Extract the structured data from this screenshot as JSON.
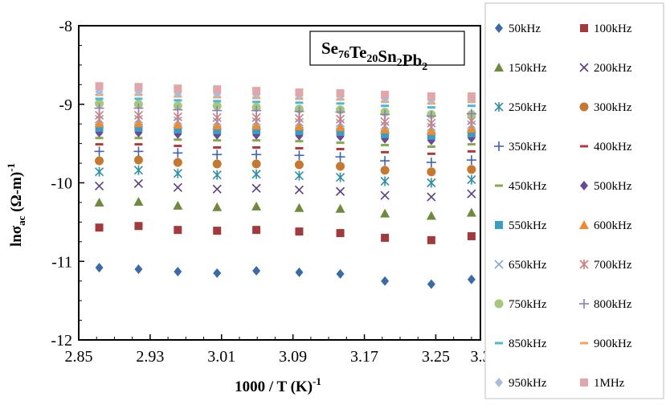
{
  "chart_data": {
    "type": "scatter",
    "title": "",
    "xlabel": "1000 / T (K)",
    "xlabel_sup": "-1",
    "ylabel_parts": [
      "lnσ",
      "ac",
      " (Ω-m)",
      "-1"
    ],
    "xlim": [
      2.85,
      3.3
    ],
    "ylim": [
      -12,
      -8
    ],
    "x_ticks": [
      2.85,
      2.93,
      3.01,
      3.09,
      3.17,
      3.25,
      3.3
    ],
    "x_tick_labels": [
      "2.85",
      "2.93",
      "3.01",
      "3.09",
      "3.17",
      "3.25",
      "3.3"
    ],
    "y_ticks": [
      -12,
      -11,
      -10,
      -9,
      -8
    ],
    "y_tick_labels": [
      "-12",
      "-11",
      "-10",
      "-9",
      "-8"
    ],
    "grid": false,
    "legend_position": "right",
    "composition_label": {
      "base": [
        "Se",
        "Te",
        "Sn",
        "Pb"
      ],
      "subs": [
        "76",
        "20",
        "2",
        "2"
      ]
    },
    "x": [
      2.873,
      2.917,
      2.961,
      3.005,
      3.049,
      3.097,
      3.143,
      3.193,
      3.245,
      3.29
    ],
    "series": [
      {
        "name": "50kHz",
        "marker": "diamond",
        "color": "#3A6AA8",
        "values": [
          -11.08,
          -11.1,
          -11.13,
          -11.15,
          -11.12,
          -11.14,
          -11.16,
          -11.25,
          -11.29,
          -11.23
        ]
      },
      {
        "name": "100kHz",
        "marker": "square",
        "color": "#A23A3C",
        "values": [
          -10.57,
          -10.55,
          -10.6,
          -10.61,
          -10.6,
          -10.62,
          -10.64,
          -10.7,
          -10.73,
          -10.68
        ]
      },
      {
        "name": "150kHz",
        "marker": "triangle",
        "color": "#6E8B3D",
        "values": [
          -10.25,
          -10.24,
          -10.29,
          -10.31,
          -10.3,
          -10.32,
          -10.33,
          -10.39,
          -10.42,
          -10.38
        ]
      },
      {
        "name": "200kHz",
        "marker": "x",
        "color": "#5B3F86",
        "values": [
          -10.04,
          -10.01,
          -10.06,
          -10.08,
          -10.07,
          -10.09,
          -10.11,
          -10.16,
          -10.18,
          -10.14
        ]
      },
      {
        "name": "250kHz",
        "marker": "asterisk",
        "color": "#2E8FA3",
        "values": [
          -9.86,
          -9.84,
          -9.88,
          -9.9,
          -9.89,
          -9.91,
          -9.93,
          -9.98,
          -10.0,
          -9.96
        ]
      },
      {
        "name": "300kHz",
        "marker": "circle",
        "color": "#C7782F",
        "values": [
          -9.72,
          -9.71,
          -9.74,
          -9.76,
          -9.76,
          -9.77,
          -9.79,
          -9.84,
          -9.86,
          -9.83
        ]
      },
      {
        "name": "350kHz",
        "marker": "plus",
        "color": "#3D62B3",
        "values": [
          -9.6,
          -9.6,
          -9.62,
          -9.64,
          -9.64,
          -9.65,
          -9.67,
          -9.72,
          -9.74,
          -9.71
        ]
      },
      {
        "name": "400kHz",
        "marker": "dash",
        "color": "#B23A3A",
        "values": [
          -9.51,
          -9.51,
          -9.53,
          -9.55,
          -9.55,
          -9.56,
          -9.57,
          -9.61,
          -9.63,
          -9.6
        ]
      },
      {
        "name": "450kHz",
        "marker": "dash",
        "color": "#86A84A",
        "values": [
          -9.43,
          -9.43,
          -9.45,
          -9.46,
          -9.46,
          -9.47,
          -9.49,
          -9.52,
          -9.54,
          -9.51
        ]
      },
      {
        "name": "500kHz",
        "marker": "diamond",
        "color": "#6A4A96",
        "values": [
          -9.36,
          -9.36,
          -9.38,
          -9.39,
          -9.39,
          -9.4,
          -9.41,
          -9.44,
          -9.46,
          -9.43
        ]
      },
      {
        "name": "550kHz",
        "marker": "square",
        "color": "#3C9CC4",
        "values": [
          -9.3,
          -9.3,
          -9.32,
          -9.33,
          -9.33,
          -9.34,
          -9.35,
          -9.38,
          -9.4,
          -9.37
        ]
      },
      {
        "name": "600kHz",
        "marker": "triangle",
        "color": "#F08A2E",
        "values": [
          -9.24,
          -9.24,
          -9.26,
          -9.27,
          -9.27,
          -9.28,
          -9.29,
          -9.32,
          -9.34,
          -9.31
        ]
      },
      {
        "name": "650kHz",
        "marker": "x",
        "color": "#8AA6D6",
        "values": [
          -9.19,
          -9.19,
          -9.21,
          -9.22,
          -9.22,
          -9.23,
          -9.24,
          -9.27,
          -9.29,
          -9.26
        ]
      },
      {
        "name": "700kHz",
        "marker": "asterisk",
        "color": "#D07A7A",
        "values": [
          -9.14,
          -9.14,
          -9.16,
          -9.17,
          -9.17,
          -9.18,
          -9.19,
          -9.22,
          -9.24,
          -9.21
        ]
      },
      {
        "name": "750kHz",
        "marker": "circle",
        "color": "#A5C97A",
        "values": [
          -8.99,
          -9.0,
          -9.02,
          -9.02,
          -9.04,
          -9.06,
          -9.07,
          -9.1,
          -9.13,
          -9.13
        ]
      },
      {
        "name": "800kHz",
        "marker": "plus",
        "color": "#8F7BB8",
        "values": [
          -9.05,
          -9.05,
          -9.07,
          -9.08,
          -9.08,
          -9.09,
          -9.1,
          -9.13,
          -9.15,
          -9.12
        ]
      },
      {
        "name": "850kHz",
        "marker": "dash",
        "color": "#4DB6D6",
        "values": [
          -8.93,
          -8.93,
          -8.95,
          -8.96,
          -8.97,
          -8.98,
          -8.99,
          -9.02,
          -9.04,
          -9.02
        ]
      },
      {
        "name": "900kHz",
        "marker": "dash",
        "color": "#F5A25C",
        "values": [
          -8.88,
          -8.88,
          -8.9,
          -8.91,
          -8.92,
          -8.93,
          -8.94,
          -8.97,
          -8.99,
          -8.97
        ]
      },
      {
        "name": "950kHz",
        "marker": "diamond",
        "color": "#A9BEDF",
        "values": [
          -8.84,
          -8.84,
          -8.86,
          -8.87,
          -8.88,
          -8.89,
          -8.9,
          -8.93,
          -8.95,
          -8.93
        ]
      },
      {
        "name": "1MHz",
        "marker": "square",
        "color": "#E0A6A8",
        "values": [
          -8.77,
          -8.78,
          -8.8,
          -8.81,
          -8.83,
          -8.85,
          -8.86,
          -8.88,
          -8.9,
          -8.9
        ]
      }
    ]
  }
}
